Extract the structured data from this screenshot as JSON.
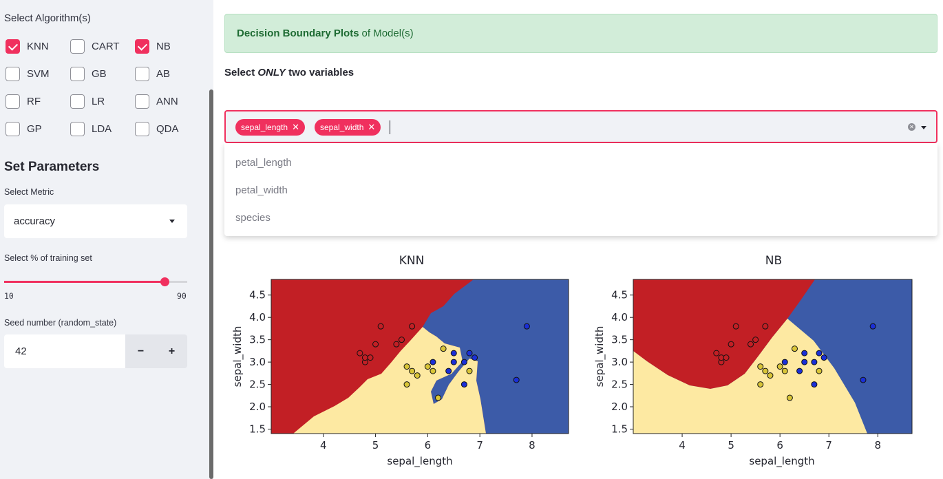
{
  "sidebar": {
    "algo_label": "Select Algorithm(s)",
    "algorithms": [
      {
        "label": "KNN",
        "checked": true
      },
      {
        "label": "CART",
        "checked": false
      },
      {
        "label": "NB",
        "checked": true
      },
      {
        "label": "SVM",
        "checked": false
      },
      {
        "label": "GB",
        "checked": false
      },
      {
        "label": "AB",
        "checked": false
      },
      {
        "label": "RF",
        "checked": false
      },
      {
        "label": "LR",
        "checked": false
      },
      {
        "label": "ANN",
        "checked": false
      },
      {
        "label": "GP",
        "checked": false
      },
      {
        "label": "LDA",
        "checked": false
      },
      {
        "label": "QDA",
        "checked": false
      }
    ],
    "params_title": "Set Parameters",
    "metric_label": "Select Metric",
    "metric_value": "accuracy",
    "train_label": "Select % of training set",
    "train_min": "10",
    "train_max": "90",
    "train_value": 90,
    "seed_label": "Seed number (random_state)",
    "seed_value": "42",
    "minus": "−",
    "plus": "+"
  },
  "main": {
    "alert_bold": "Decision Boundary Plots",
    "alert_rest": "of Model(s)",
    "select_pre": "Select ",
    "select_em": "ONLY",
    "select_post": " two variables",
    "tags": [
      "sepal_length",
      "sepal_width"
    ],
    "options": [
      "petal_length",
      "petal_width",
      "species"
    ]
  },
  "colors": {
    "accent": "#f0305e",
    "red": "#c21f25",
    "yellow": "#fde9a2",
    "blue": "#3c5ba8"
  },
  "chart_data": [
    {
      "type": "scatter",
      "title": "KNN",
      "xlabel": "sepal_length",
      "ylabel": "sepal_width",
      "xlim": [
        3.0,
        8.7
      ],
      "ylim": [
        1.4,
        4.85
      ],
      "xticks": [
        4,
        5,
        6,
        7,
        8
      ],
      "yticks": [
        1.5,
        2.0,
        2.5,
        3.0,
        3.5,
        4.0,
        4.5
      ],
      "regions": [
        "red",
        "yellow",
        "blue"
      ]
    },
    {
      "type": "scatter",
      "title": "NB",
      "xlabel": "sepal_length",
      "ylabel": "sepal_width",
      "xlim": [
        3.0,
        8.7
      ],
      "ylim": [
        1.4,
        4.85
      ],
      "xticks": [
        4,
        5,
        6,
        7,
        8
      ],
      "yticks": [
        1.5,
        2.0,
        2.5,
        3.0,
        3.5,
        4.0,
        4.5
      ],
      "regions": [
        "red",
        "yellow",
        "blue"
      ]
    }
  ],
  "points": {
    "red": [
      [
        4.7,
        3.2
      ],
      [
        4.8,
        3.0
      ],
      [
        4.8,
        3.1
      ],
      [
        4.9,
        3.1
      ],
      [
        5.0,
        3.4
      ],
      [
        5.1,
        3.8
      ],
      [
        5.4,
        3.4
      ],
      [
        5.5,
        3.5
      ],
      [
        5.7,
        3.8
      ]
    ],
    "yellow": [
      [
        5.6,
        2.9
      ],
      [
        5.6,
        2.5
      ],
      [
        5.7,
        2.8
      ],
      [
        5.8,
        2.7
      ],
      [
        6.0,
        2.9
      ],
      [
        6.1,
        2.8
      ],
      [
        6.2,
        2.2
      ],
      [
        6.3,
        3.3
      ],
      [
        6.8,
        2.8
      ]
    ],
    "blue": [
      [
        6.1,
        3.0
      ],
      [
        6.4,
        2.8
      ],
      [
        6.5,
        3.0
      ],
      [
        6.5,
        3.2
      ],
      [
        6.7,
        3.0
      ],
      [
        6.7,
        2.5
      ],
      [
        6.8,
        3.2
      ],
      [
        6.9,
        3.1
      ],
      [
        7.7,
        2.6
      ],
      [
        7.9,
        3.8
      ]
    ]
  }
}
